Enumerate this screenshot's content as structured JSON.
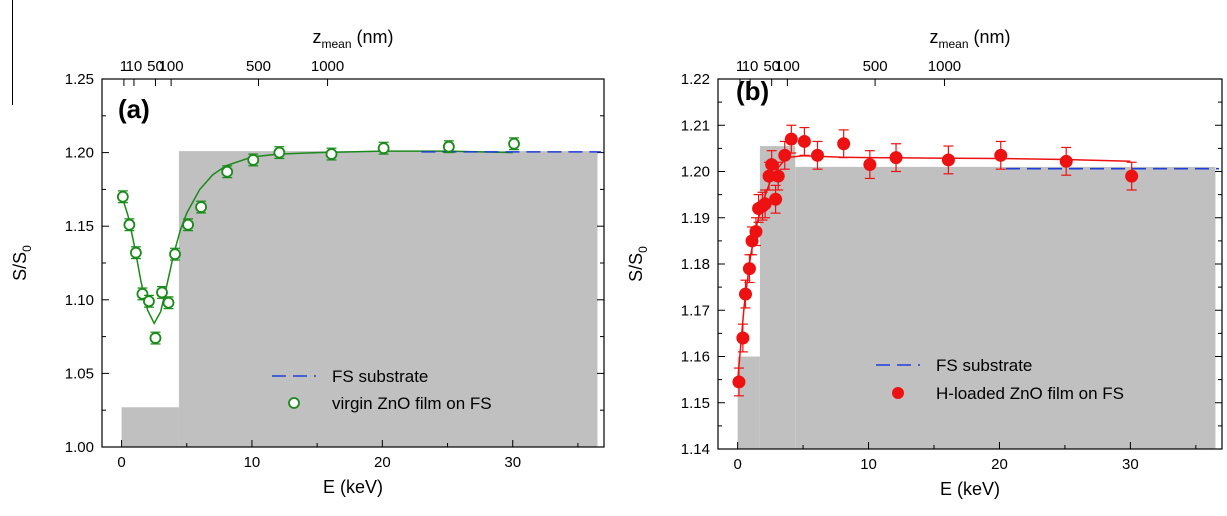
{
  "chart_data": [
    {
      "type": "scatter",
      "panel_label": "(a)",
      "xlabel": "E (keV)",
      "ylabel": "S/S",
      "ylabel_sub": "0",
      "top_axis_label": "z",
      "top_axis_label_sub": "mean",
      "top_axis_unit": " (nm)",
      "xlim": [
        -1.5,
        37
      ],
      "ylim": [
        1.0,
        1.25
      ],
      "xticks": [
        0,
        10,
        20,
        30
      ],
      "yticks": [
        1.0,
        1.05,
        1.1,
        1.15,
        1.2,
        1.25
      ],
      "ytick_labels": [
        "1.00",
        "1.05",
        "1.10",
        "1.15",
        "1.20",
        "1.25"
      ],
      "top_ticks": [
        {
          "label": "1",
          "e": 0.18
        },
        {
          "label": "10",
          "e": 0.95
        },
        {
          "label": "50",
          "e": 2.6
        },
        {
          "label": "100",
          "e": 3.8
        },
        {
          "label": "500",
          "e": 10.5
        },
        {
          "label": "1000",
          "e": 15.8
        }
      ],
      "grid": false,
      "legend_position": "bottom-right",
      "colors": {
        "series": "#1a8a1a",
        "substrate": "#1f3fd8",
        "shade": "#c0c0c0"
      },
      "shaded_profile": [
        {
          "e_start": 0,
          "e_end": 4.4,
          "value": 1.027
        },
        {
          "e_start": 4.4,
          "e_end": 36.5,
          "value": 1.201
        }
      ],
      "series": [
        {
          "name": "virgin ZnO film on FS",
          "marker": "open-circle",
          "x": [
            0.1,
            0.6,
            1.1,
            1.6,
            2.1,
            2.6,
            3.1,
            3.6,
            4.1,
            5.1,
            6.1,
            8.1,
            10.1,
            12.1,
            16.1,
            20.1,
            25.1,
            30.1
          ],
          "y": [
            1.17,
            1.151,
            1.132,
            1.104,
            1.099,
            1.074,
            1.105,
            1.098,
            1.131,
            1.151,
            1.163,
            1.187,
            1.195,
            1.2,
            1.199,
            1.203,
            1.204,
            1.206
          ],
          "yerr": 0.004
        },
        {
          "name": "fit",
          "style": "solid-line",
          "x": [
            0,
            0.5,
            1,
            1.5,
            2,
            2.5,
            3,
            3.5,
            4,
            4.5,
            5,
            6,
            7,
            8,
            10,
            12,
            15,
            20,
            25,
            30
          ],
          "y": [
            1.171,
            1.157,
            1.136,
            1.112,
            1.093,
            1.084,
            1.092,
            1.111,
            1.131,
            1.147,
            1.159,
            1.175,
            1.185,
            1.191,
            1.197,
            1.199,
            1.2,
            1.201,
            1.201,
            1.2
          ]
        },
        {
          "name": "FS substrate",
          "style": "dashed-line",
          "x": [
            23,
            37
          ],
          "y": [
            1.2005,
            1.2005
          ]
        }
      ]
    },
    {
      "type": "scatter",
      "panel_label": "(b)",
      "xlabel": "E (keV)",
      "ylabel": "S/S",
      "ylabel_sub": "0",
      "top_axis_label": "z",
      "top_axis_label_sub": "mean",
      "top_axis_unit": " (nm)",
      "xlim": [
        -1.5,
        37
      ],
      "ylim": [
        1.14,
        1.22
      ],
      "xticks": [
        0,
        10,
        20,
        30
      ],
      "yticks": [
        1.14,
        1.15,
        1.16,
        1.17,
        1.18,
        1.19,
        1.2,
        1.21,
        1.22
      ],
      "ytick_labels": [
        "1.14",
        "1.15",
        "1.16",
        "1.17",
        "1.18",
        "1.19",
        "1.20",
        "1.21",
        "1.22"
      ],
      "top_ticks": [
        {
          "label": "1",
          "e": 0.18
        },
        {
          "label": "10",
          "e": 0.95
        },
        {
          "label": "50",
          "e": 2.6
        },
        {
          "label": "100",
          "e": 3.8
        },
        {
          "label": "500",
          "e": 10.5
        },
        {
          "label": "1000",
          "e": 15.8
        }
      ],
      "grid": false,
      "legend_position": "bottom-right",
      "colors": {
        "series": "#ee1111",
        "substrate": "#1f3fd8",
        "shade": "#c0c0c0"
      },
      "shaded_profile": [
        {
          "e_start": 0,
          "e_end": 1.7,
          "value": 1.16
        },
        {
          "e_start": 1.7,
          "e_end": 4.4,
          "value": 1.2055
        },
        {
          "e_start": 4.4,
          "e_end": 36.5,
          "value": 1.201
        }
      ],
      "series": [
        {
          "name": "H-loaded ZnO film on FS",
          "marker": "filled-circle",
          "x": [
            0.1,
            0.4,
            0.6,
            0.9,
            1.1,
            1.4,
            1.6,
            1.9,
            2.1,
            2.4,
            2.6,
            2.9,
            3.1,
            3.6,
            4.1,
            5.1,
            6.1,
            8.1,
            10.1,
            12.1,
            16.1,
            20.1,
            25.1,
            30.1
          ],
          "y": [
            1.1545,
            1.164,
            1.1735,
            1.179,
            1.185,
            1.187,
            1.192,
            1.1925,
            1.193,
            1.199,
            1.2015,
            1.194,
            1.199,
            1.2035,
            1.207,
            1.2065,
            1.2035,
            1.206,
            1.2015,
            1.203,
            1.2025,
            1.2035,
            1.2022,
            1.199
          ],
          "yerr": 0.003
        },
        {
          "name": "fit",
          "style": "solid-line",
          "x": [
            0,
            0.5,
            1,
            1.5,
            2,
            2.5,
            3,
            3.5,
            4,
            5,
            6,
            8,
            10,
            15,
            20,
            25,
            30
          ],
          "y": [
            1.1545,
            1.171,
            1.182,
            1.189,
            1.194,
            1.198,
            1.2005,
            1.2022,
            1.2031,
            1.2034,
            1.2033,
            1.2031,
            1.203,
            1.2029,
            1.2028,
            1.2026,
            1.2022
          ]
        },
        {
          "name": "FS substrate",
          "style": "dashed-line",
          "x": [
            20.5,
            37
          ],
          "y": [
            1.2006,
            1.2006
          ]
        }
      ]
    }
  ]
}
